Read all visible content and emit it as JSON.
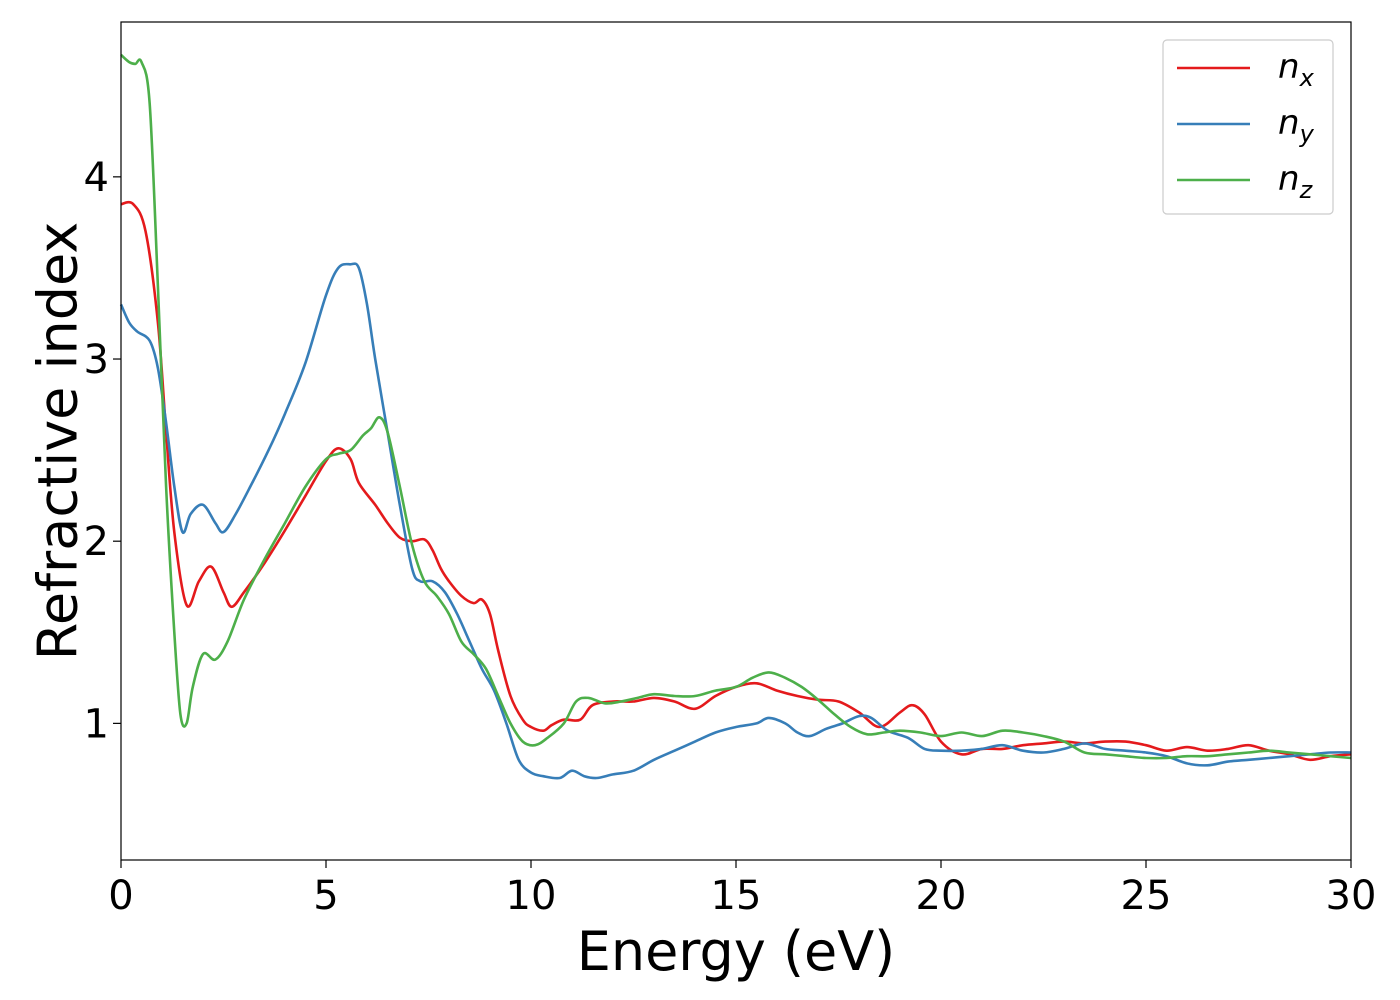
{
  "chart_data": {
    "type": "line",
    "title": "",
    "xlabel": "Energy (eV)",
    "ylabel": "Refractive index",
    "xlim": [
      0,
      30
    ],
    "ylim": [
      0.25,
      4.85
    ],
    "xticks": [
      0,
      5,
      10,
      15,
      20,
      25,
      30
    ],
    "yticks": [
      1,
      2,
      3,
      4
    ],
    "grid": false,
    "legend_position": "top-right",
    "series": [
      {
        "name": "n_x",
        "legend_base": "n",
        "legend_sub": "x",
        "color": "#e41a1c",
        "x": [
          0,
          0.3,
          0.6,
          0.9,
          1.1,
          1.3,
          1.6,
          1.9,
          2.2,
          2.5,
          2.7,
          3.0,
          3.5,
          4.0,
          4.5,
          5.0,
          5.3,
          5.6,
          5.8,
          6.2,
          6.5,
          6.8,
          7.1,
          7.4,
          7.6,
          7.8,
          8.0,
          8.3,
          8.6,
          8.8,
          9.0,
          9.2,
          9.5,
          9.8,
          10.0,
          10.3,
          10.5,
          10.8,
          11.2,
          11.5,
          12.0,
          12.5,
          13.0,
          13.5,
          14.0,
          14.5,
          15.0,
          15.5,
          16.0,
          16.5,
          17.0,
          17.5,
          18.0,
          18.5,
          19.0,
          19.3,
          19.6,
          20.0,
          20.5,
          21.0,
          21.5,
          22.0,
          22.5,
          23.0,
          23.5,
          24.0,
          24.5,
          25.0,
          25.5,
          26.0,
          26.5,
          27.0,
          27.5,
          28.0,
          28.5,
          29.0,
          29.5,
          30.0
        ],
        "y": [
          3.85,
          3.85,
          3.7,
          3.2,
          2.6,
          2.05,
          1.65,
          1.78,
          1.86,
          1.72,
          1.64,
          1.72,
          1.88,
          2.06,
          2.25,
          2.44,
          2.51,
          2.45,
          2.32,
          2.2,
          2.1,
          2.02,
          2.0,
          2.01,
          1.95,
          1.85,
          1.78,
          1.7,
          1.66,
          1.68,
          1.6,
          1.4,
          1.15,
          1.02,
          0.98,
          0.96,
          0.99,
          1.02,
          1.02,
          1.1,
          1.12,
          1.12,
          1.14,
          1.12,
          1.08,
          1.15,
          1.2,
          1.22,
          1.18,
          1.15,
          1.13,
          1.12,
          1.06,
          0.98,
          1.06,
          1.1,
          1.05,
          0.9,
          0.83,
          0.86,
          0.86,
          0.88,
          0.89,
          0.9,
          0.89,
          0.9,
          0.9,
          0.88,
          0.85,
          0.87,
          0.85,
          0.86,
          0.88,
          0.85,
          0.83,
          0.8,
          0.82,
          0.83
        ]
      },
      {
        "name": "n_y",
        "legend_base": "n",
        "legend_sub": "y",
        "color": "#377eb8",
        "x": [
          0,
          0.2,
          0.4,
          0.7,
          0.9,
          1.1,
          1.3,
          1.5,
          1.7,
          2.0,
          2.3,
          2.5,
          2.8,
          3.2,
          3.6,
          4.0,
          4.5,
          5.0,
          5.3,
          5.6,
          5.8,
          6.0,
          6.2,
          6.5,
          6.8,
          7.1,
          7.3,
          7.6,
          7.9,
          8.2,
          8.5,
          8.8,
          9.1,
          9.4,
          9.7,
          10.0,
          10.3,
          10.7,
          11.0,
          11.3,
          11.6,
          12.0,
          12.5,
          13.0,
          13.5,
          14.0,
          14.5,
          15.0,
          15.5,
          15.8,
          16.2,
          16.5,
          16.8,
          17.2,
          17.6,
          18.0,
          18.3,
          18.7,
          19.2,
          19.6,
          20.0,
          20.5,
          21.0,
          21.5,
          22.0,
          22.5,
          23.0,
          23.5,
          24.0,
          24.5,
          25.0,
          25.5,
          26.0,
          26.5,
          27.0,
          27.5,
          28.0,
          28.5,
          29.0,
          29.5,
          30.0
        ],
        "y": [
          3.3,
          3.2,
          3.15,
          3.1,
          2.95,
          2.65,
          2.3,
          2.05,
          2.15,
          2.2,
          2.1,
          2.05,
          2.15,
          2.32,
          2.5,
          2.7,
          2.98,
          3.35,
          3.5,
          3.52,
          3.5,
          3.3,
          3.0,
          2.6,
          2.2,
          1.85,
          1.78,
          1.78,
          1.72,
          1.6,
          1.45,
          1.3,
          1.18,
          1.0,
          0.8,
          0.73,
          0.71,
          0.7,
          0.74,
          0.71,
          0.7,
          0.72,
          0.74,
          0.8,
          0.85,
          0.9,
          0.95,
          0.98,
          1.0,
          1.03,
          1.0,
          0.95,
          0.93,
          0.97,
          1.0,
          1.04,
          1.03,
          0.96,
          0.92,
          0.86,
          0.85,
          0.85,
          0.86,
          0.88,
          0.85,
          0.84,
          0.86,
          0.89,
          0.86,
          0.85,
          0.84,
          0.82,
          0.78,
          0.77,
          0.79,
          0.8,
          0.81,
          0.82,
          0.83,
          0.84,
          0.84
        ]
      },
      {
        "name": "n_z",
        "legend_base": "n",
        "legend_sub": "z",
        "color": "#4daf4a",
        "x": [
          0,
          0.2,
          0.35,
          0.5,
          0.7,
          0.9,
          1.1,
          1.3,
          1.45,
          1.6,
          1.75,
          2.0,
          2.3,
          2.6,
          3.0,
          3.5,
          4.0,
          4.5,
          5.0,
          5.3,
          5.6,
          5.9,
          6.1,
          6.3,
          6.5,
          6.8,
          7.1,
          7.4,
          7.7,
          8.0,
          8.3,
          8.6,
          8.9,
          9.2,
          9.5,
          9.8,
          10.1,
          10.4,
          10.8,
          11.1,
          11.4,
          11.8,
          12.2,
          12.6,
          13.0,
          13.5,
          14.0,
          14.5,
          15.0,
          15.4,
          15.8,
          16.2,
          16.6,
          17.0,
          17.4,
          17.8,
          18.2,
          18.6,
          19.0,
          19.5,
          20.0,
          20.5,
          21.0,
          21.5,
          22.0,
          22.5,
          23.0,
          23.5,
          24.0,
          24.5,
          25.0,
          25.5,
          26.0,
          26.5,
          27.0,
          27.5,
          28.0,
          28.5,
          29.0,
          29.5,
          30.0
        ],
        "y": [
          4.67,
          4.63,
          4.62,
          4.63,
          4.4,
          3.4,
          2.3,
          1.5,
          1.05,
          1.0,
          1.2,
          1.38,
          1.35,
          1.45,
          1.68,
          1.9,
          2.1,
          2.3,
          2.45,
          2.48,
          2.5,
          2.58,
          2.62,
          2.68,
          2.6,
          2.3,
          1.98,
          1.78,
          1.7,
          1.6,
          1.45,
          1.38,
          1.3,
          1.15,
          1.0,
          0.9,
          0.88,
          0.92,
          1.0,
          1.12,
          1.14,
          1.11,
          1.12,
          1.14,
          1.16,
          1.15,
          1.15,
          1.18,
          1.2,
          1.25,
          1.28,
          1.25,
          1.2,
          1.13,
          1.05,
          0.98,
          0.94,
          0.95,
          0.96,
          0.95,
          0.93,
          0.95,
          0.93,
          0.96,
          0.95,
          0.93,
          0.9,
          0.84,
          0.83,
          0.82,
          0.81,
          0.81,
          0.82,
          0.82,
          0.83,
          0.84,
          0.85,
          0.84,
          0.83,
          0.82,
          0.81
        ]
      }
    ]
  }
}
